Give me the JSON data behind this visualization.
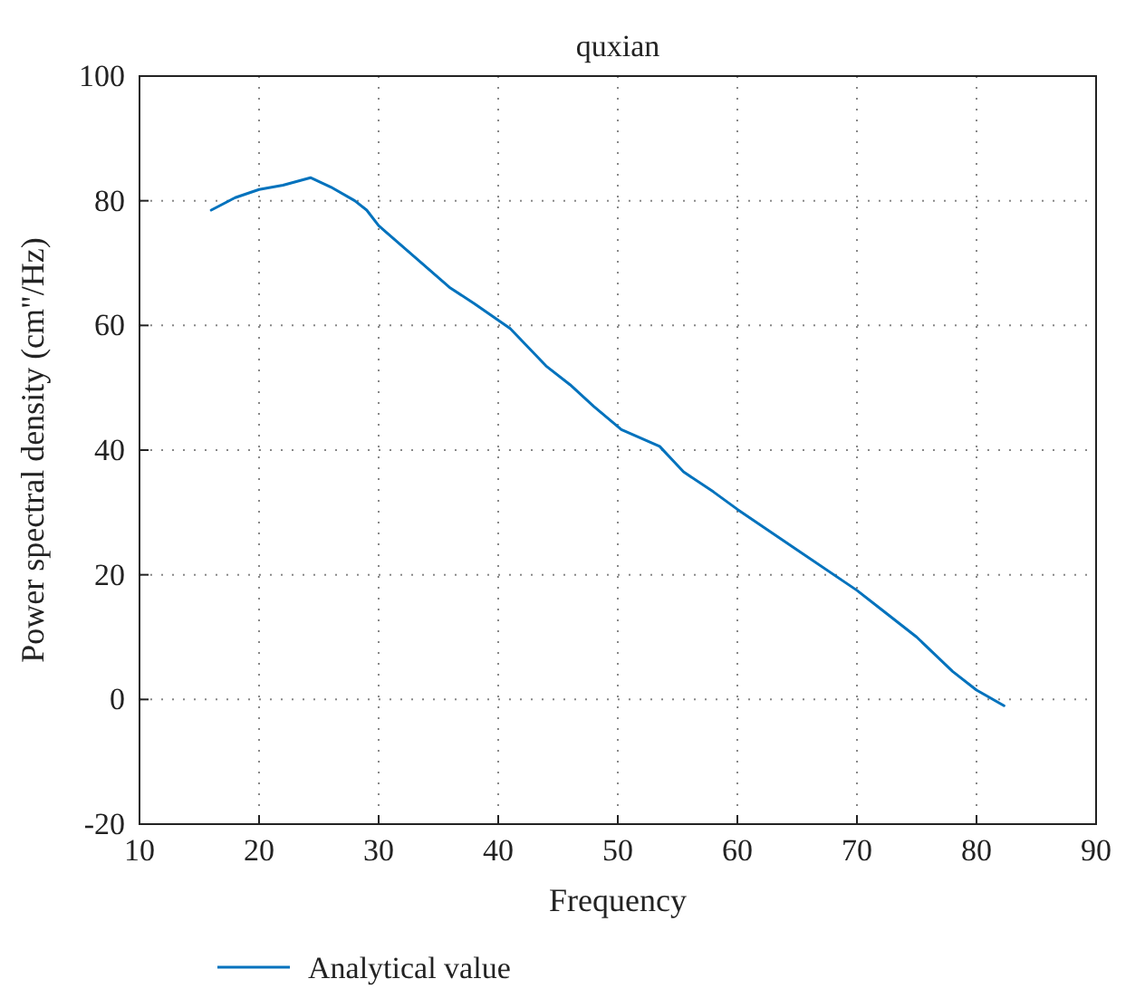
{
  "chart_data": {
    "type": "line",
    "title": "quxian",
    "xlabel": "Frequency",
    "ylabel": "Power spectral density (cm\"/Hz)",
    "xlim": [
      10,
      90
    ],
    "xticks": [
      10,
      20,
      30,
      40,
      50,
      60,
      70,
      80,
      90
    ],
    "ylim": [
      -20,
      100
    ],
    "yticks": [
      -20,
      0,
      20,
      40,
      60,
      80,
      100
    ],
    "grid": true,
    "legend": "bottom",
    "line_style": "solid",
    "marker": "none",
    "series": [
      {
        "name": "Analytical value",
        "color": "#0072bd",
        "x": [
          16,
          18,
          20,
          22,
          24.3,
          26,
          28,
          29,
          30,
          33,
          36,
          38,
          41,
          44,
          46,
          48,
          50.3,
          53.5,
          55.5,
          58,
          60,
          65,
          70,
          72,
          75,
          78,
          80,
          82.3
        ],
        "values": [
          78.5,
          80.5,
          81.8,
          82.5,
          83.7,
          82.2,
          80,
          78.5,
          76,
          71,
          66,
          63.5,
          59.5,
          53.5,
          50.5,
          47,
          43.3,
          40.6,
          36.5,
          33.3,
          30.5,
          24,
          17.5,
          14.5,
          10,
          4.5,
          1.5,
          -1
        ]
      }
    ]
  }
}
